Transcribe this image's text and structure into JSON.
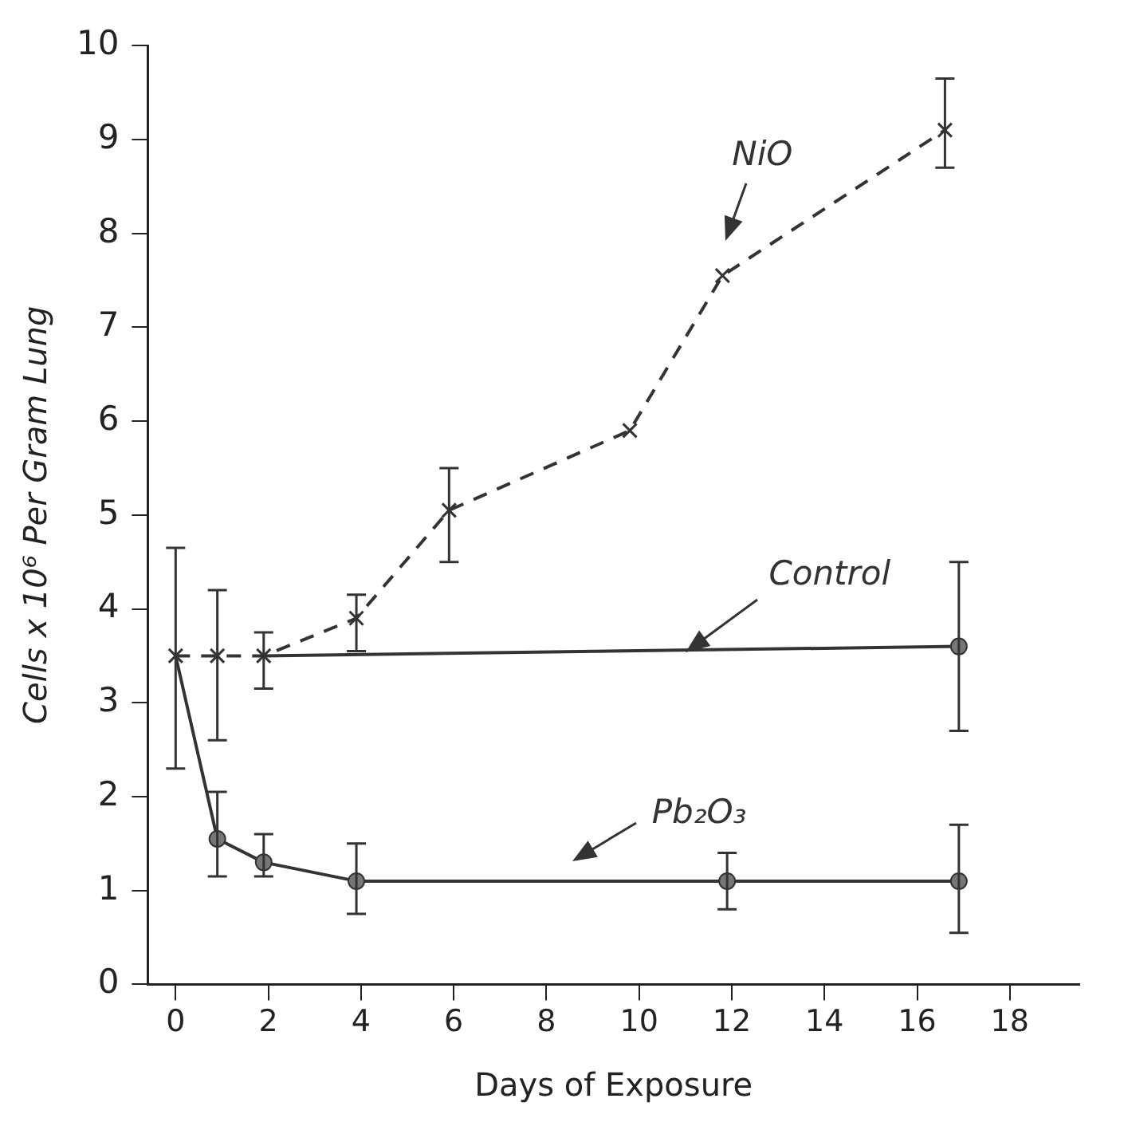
{
  "chart_data": {
    "type": "line",
    "xlabel": "Days of Exposure",
    "ylabel": "Cells x 10⁶ Per Gram Lung",
    "xlim": [
      -0.6,
      19.5
    ],
    "xticks": [
      0,
      2,
      4,
      6,
      8,
      10,
      12,
      14,
      16,
      18
    ],
    "ylim": [
      0,
      10
    ],
    "yticks": [
      0,
      1,
      2,
      3,
      4,
      5,
      6,
      7,
      8,
      9,
      10
    ],
    "grid": false,
    "legend": false,
    "series": [
      {
        "name": "NiO",
        "color": "#333333",
        "marker": "cross",
        "line_style": "dashed",
        "x": [
          0,
          0.9,
          1.9,
          3.9,
          5.9,
          9.8,
          11.8,
          16.6
        ],
        "values": [
          3.5,
          3.5,
          3.5,
          3.9,
          5.05,
          5.9,
          7.55,
          9.1
        ],
        "errors": [
          [
            2.3,
            4.65
          ],
          [
            2.6,
            4.2
          ],
          [
            3.15,
            3.75
          ],
          [
            3.55,
            4.15
          ],
          [
            4.5,
            5.5
          ],
          null,
          null,
          [
            8.7,
            9.65
          ]
        ]
      },
      {
        "name": "Control",
        "color": "#333333",
        "marker": "circle",
        "line_style": "solid",
        "x": [
          1.9,
          16.9
        ],
        "values": [
          3.5,
          3.6
        ],
        "errors": [
          null,
          [
            2.7,
            4.5
          ]
        ]
      },
      {
        "name": "Pb₂O₃",
        "color": "#333333",
        "marker": "circle",
        "line_style": "solid",
        "x": [
          0,
          0.9,
          1.9,
          3.9,
          11.9,
          16.9
        ],
        "values": [
          3.5,
          1.55,
          1.3,
          1.1,
          1.1,
          1.1
        ],
        "errors": [
          null,
          [
            1.15,
            2.05
          ],
          [
            1.15,
            1.6
          ],
          [
            0.75,
            1.5
          ],
          [
            0.8,
            1.4
          ],
          [
            0.55,
            1.7
          ]
        ]
      }
    ]
  }
}
